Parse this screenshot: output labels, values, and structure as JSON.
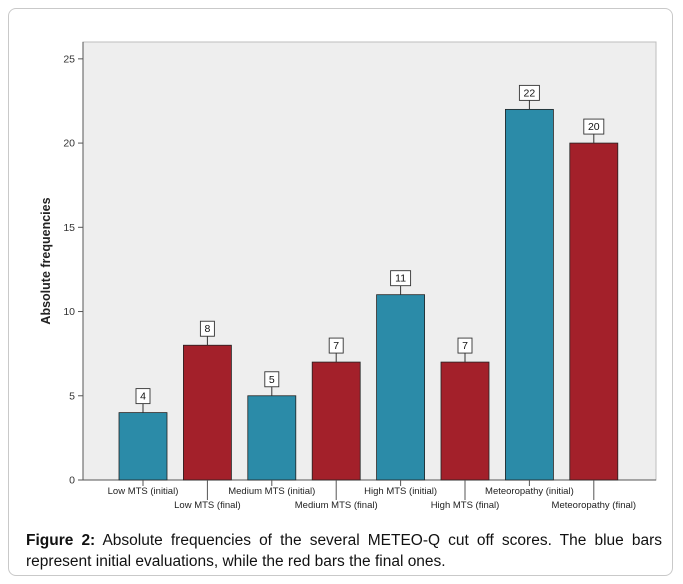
{
  "chart_data": {
    "type": "bar",
    "categories": [
      "Low MTS (initial)",
      "Low MTS (final)",
      "Medium MTS (initial)",
      "Medium MTS (final)",
      "High MTS (initial)",
      "High MTS (final)",
      "Meteoropathy (initial)",
      "Meteoropathy (final)"
    ],
    "values": [
      4,
      8,
      5,
      7,
      11,
      7,
      22,
      20
    ],
    "data_labels": [
      "4",
      "8",
      "5",
      "7",
      "11",
      "7",
      "22",
      "20"
    ],
    "bar_colors": [
      "#2b8ba8",
      "#a3202a",
      "#2b8ba8",
      "#a3202a",
      "#2b8ba8",
      "#a3202a",
      "#2b8ba8",
      "#a3202a"
    ],
    "ylabel": "Absolute frequencies",
    "xlabel": "",
    "ylim": [
      0,
      26
    ],
    "yticks": [
      0,
      5,
      10,
      15,
      20,
      25
    ],
    "ytick_labels": [
      "0",
      "5",
      "10",
      "15",
      "20",
      "25"
    ],
    "grid": false,
    "legend": "none"
  },
  "caption": {
    "label": "Figure 2:",
    "text": " Absolute frequencies of the several METEO-Q cut off scores. The blue bars represent initial evaluations, while the red bars the final ones."
  },
  "colors": {
    "blue_bar": "#2b8ba8",
    "red_bar": "#a3202a",
    "plot_background": "#eeeeee",
    "frame_border": "#c9c9c9"
  }
}
